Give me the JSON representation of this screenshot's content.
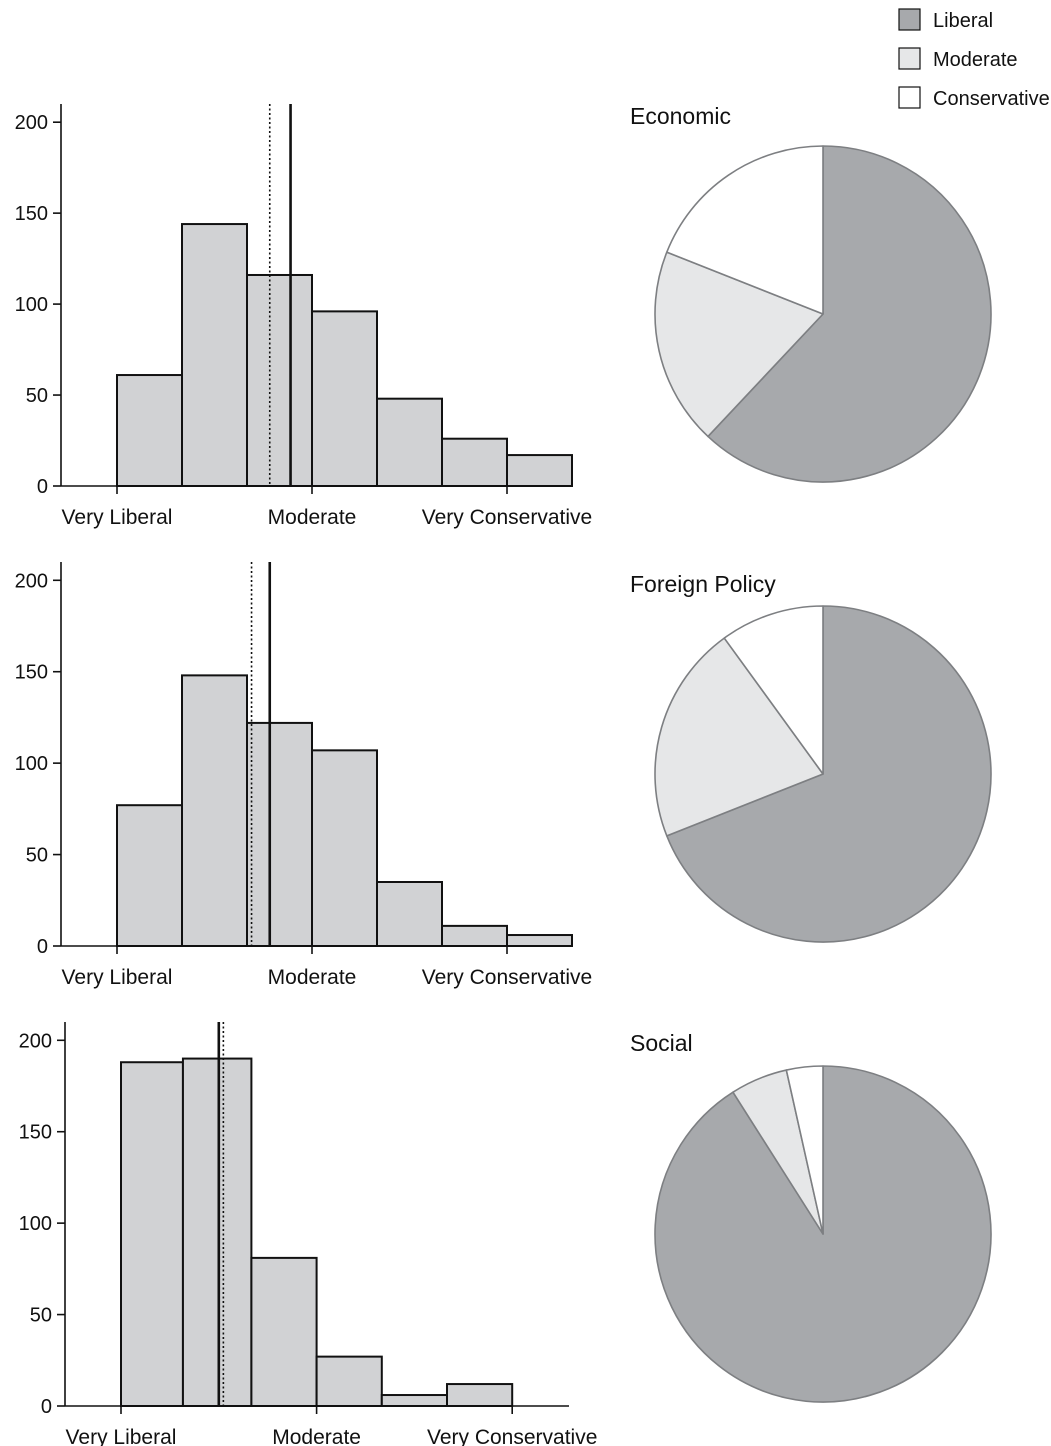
{
  "colors": {
    "bar_fill": "#d1d2d4",
    "liberal": "#a7a9ac",
    "moderate": "#e6e7e8",
    "conservative": "#ffffff",
    "stroke": "#111111"
  },
  "legend": [
    {
      "label": "Liberal",
      "color": "#a7a9ac"
    },
    {
      "label": "Moderate",
      "color": "#e6e7e8"
    },
    {
      "label": "Conservative",
      "color": "#ffffff"
    }
  ],
  "chart_data": [
    {
      "type": "bar",
      "categories": [
        "Very Liberal",
        "",
        "Moderate",
        "",
        "Very Conservative"
      ],
      "y_ticks": [
        0,
        50,
        100,
        150,
        200
      ],
      "ylim": [
        0,
        210
      ],
      "x_range": [
        0.6,
        7.6
      ],
      "bins": [
        {
          "x0": 1,
          "x1": 2,
          "value": 61
        },
        {
          "x0": 2,
          "x1": 3,
          "value": 144
        },
        {
          "x0": 3,
          "x1": 4,
          "value": 116
        },
        {
          "x0": 4,
          "x1": 5,
          "value": 96
        },
        {
          "x0": 5,
          "x1": 6,
          "value": 48
        },
        {
          "x0": 6,
          "x1": 7,
          "value": 26
        },
        {
          "x0": 7,
          "x1": 8,
          "value": 17
        }
      ],
      "ref_lines": [
        {
          "x": 3.35,
          "style": "dotted"
        },
        {
          "x": 3.67,
          "style": "solid"
        }
      ]
    },
    {
      "type": "pie",
      "title": "Economic",
      "slices": [
        {
          "label": "Liberal",
          "value": 62
        },
        {
          "label": "Moderate",
          "value": 19
        },
        {
          "label": "Conservative",
          "value": 19
        }
      ]
    },
    {
      "type": "bar",
      "categories": [
        "Very Liberal",
        "",
        "Moderate",
        "",
        "Very Conservative"
      ],
      "y_ticks": [
        0,
        50,
        100,
        150,
        200
      ],
      "ylim": [
        0,
        210
      ],
      "x_range": [
        0.6,
        7.6
      ],
      "bins": [
        {
          "x0": 1,
          "x1": 2,
          "value": 77
        },
        {
          "x0": 2,
          "x1": 3,
          "value": 148
        },
        {
          "x0": 3,
          "x1": 4,
          "value": 122
        },
        {
          "x0": 4,
          "x1": 5,
          "value": 107
        },
        {
          "x0": 5,
          "x1": 6,
          "value": 35
        },
        {
          "x0": 6,
          "x1": 7,
          "value": 11
        },
        {
          "x0": 7,
          "x1": 8,
          "value": 6
        }
      ],
      "ref_lines": [
        {
          "x": 3.07,
          "style": "dotted"
        },
        {
          "x": 3.35,
          "style": "solid"
        }
      ]
    },
    {
      "type": "pie",
      "title": "Foreign Policy",
      "slices": [
        {
          "label": "Liberal",
          "value": 69
        },
        {
          "label": "Moderate",
          "value": 21
        },
        {
          "label": "Conservative",
          "value": 10
        }
      ]
    },
    {
      "type": "bar",
      "categories": [
        "Very Liberal",
        "",
        "Moderate",
        "",
        "Very Conservative"
      ],
      "y_ticks": [
        0,
        50,
        100,
        150,
        200
      ],
      "ylim": [
        0,
        210
      ],
      "x_range": [
        0.6,
        7.6
      ],
      "bins": [
        {
          "x0": 1,
          "x1": 1.95,
          "value": 188
        },
        {
          "x0": 1.95,
          "x1": 3,
          "value": 190
        },
        {
          "x0": 3,
          "x1": 4,
          "value": 81
        },
        {
          "x0": 4,
          "x1": 5,
          "value": 27
        },
        {
          "x0": 5,
          "x1": 6,
          "value": 6
        },
        {
          "x0": 6,
          "x1": 7,
          "value": 12
        }
      ],
      "ref_lines": [
        {
          "x": 2.5,
          "style": "solid"
        },
        {
          "x": 2.57,
          "style": "dotted"
        }
      ]
    },
    {
      "type": "pie",
      "title": "Social",
      "slices": [
        {
          "label": "Liberal",
          "value": 91
        },
        {
          "label": "Moderate",
          "value": 5.5
        },
        {
          "label": "Conservative",
          "value": 3.5
        }
      ]
    }
  ]
}
